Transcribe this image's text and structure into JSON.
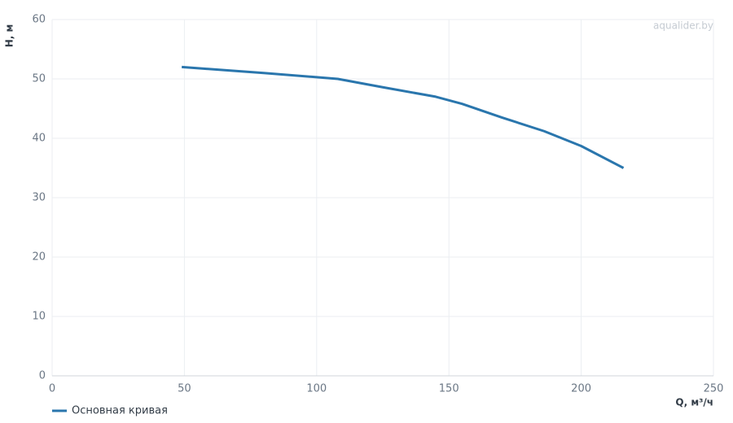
{
  "chart_data": {
    "type": "line",
    "watermark": "aqualider.by",
    "x_label": "Q, м³/ч",
    "y_label": "H, м",
    "x": [
      49,
      80,
      108,
      125,
      145,
      155,
      170,
      186,
      200,
      216
    ],
    "series": [
      {
        "name": "Основная кривая",
        "color": "#2a76ad",
        "values": [
          52,
          51,
          50,
          48.6,
          47,
          45.8,
          43.5,
          41.2,
          38.7,
          35
        ]
      }
    ],
    "xlim": [
      0,
      250
    ],
    "xticks": [
      0,
      50,
      100,
      150,
      200,
      250
    ],
    "ylim": [
      0,
      60
    ],
    "yticks": [
      0,
      10,
      20,
      30,
      40,
      50,
      60
    ],
    "grid": true
  }
}
